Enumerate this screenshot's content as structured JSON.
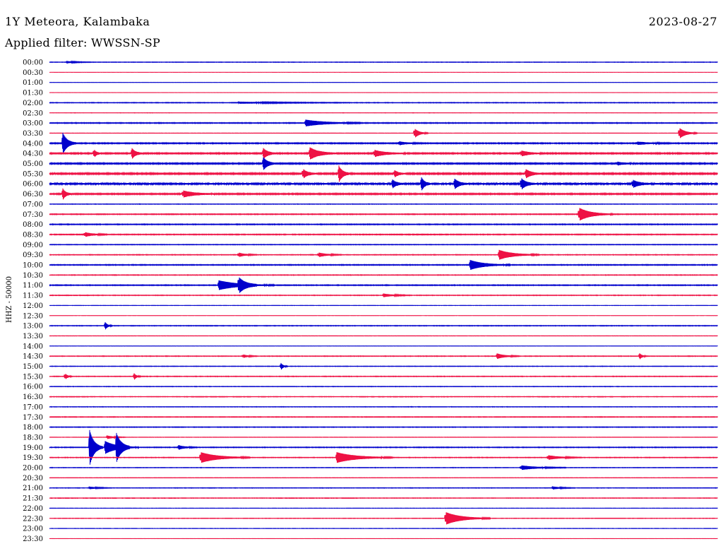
{
  "header": {
    "station": "1Y Meteora, Kalambaka",
    "date": "2023-08-27",
    "filter": "Applied filter: WWSSN-SP"
  },
  "chart_data": {
    "type": "line",
    "title": "1Y Meteora, Kalambaka",
    "ylabel": "HHZ - 50000",
    "trace_colors": [
      "#0000cc",
      "#ee1144"
    ],
    "row_labels": [
      "00:00",
      "00:30",
      "01:00",
      "01:30",
      "02:00",
      "02:30",
      "03:00",
      "03:30",
      "04:00",
      "04:30",
      "05:00",
      "05:30",
      "06:00",
      "06:30",
      "07:00",
      "07:30",
      "08:00",
      "08:30",
      "09:00",
      "09:30",
      "10:00",
      "10:30",
      "11:00",
      "11:30",
      "12:00",
      "12:30",
      "13:00",
      "13:30",
      "14:00",
      "14:30",
      "15:00",
      "15:30",
      "16:00",
      "16:30",
      "17:00",
      "17:30",
      "18:00",
      "18:30",
      "19:00",
      "19:30",
      "20:00",
      "20:30",
      "21:00",
      "21:30",
      "22:00",
      "22:30",
      "23:00",
      "23:30"
    ],
    "x_range_minutes": [
      0,
      30
    ],
    "noise_levels": [
      0.05,
      0.02,
      0.03,
      0.02,
      0.06,
      0.03,
      0.08,
      0.04,
      0.1,
      0.12,
      0.12,
      0.14,
      0.16,
      0.12,
      0.05,
      0.08,
      0.08,
      0.08,
      0.06,
      0.06,
      0.08,
      0.06,
      0.08,
      0.06,
      0.03,
      0.02,
      0.06,
      0.04,
      0.03,
      0.06,
      0.05,
      0.06,
      0.05,
      0.05,
      0.05,
      0.06,
      0.06,
      0.04,
      0.07,
      0.06,
      0.05,
      0.04,
      0.05,
      0.05,
      0.03,
      0.04,
      0.03,
      0.02
    ],
    "events": [
      {
        "row": 0,
        "minute": 0.8,
        "amp": 0.15,
        "dur": 1.2
      },
      {
        "row": 4,
        "minute": 8.5,
        "amp": 0.15,
        "dur": 5.0
      },
      {
        "row": 6,
        "minute": 11.5,
        "amp": 0.6,
        "dur": 2.5
      },
      {
        "row": 7,
        "minute": 16.4,
        "amp": 0.9,
        "dur": 0.6
      },
      {
        "row": 7,
        "minute": 28.3,
        "amp": 1.0,
        "dur": 0.8
      },
      {
        "row": 8,
        "minute": 0.6,
        "amp": 2.0,
        "dur": 0.6
      },
      {
        "row": 8,
        "minute": 15.7,
        "amp": 0.3,
        "dur": 1.0
      },
      {
        "row": 8,
        "minute": 26.4,
        "amp": 0.25,
        "dur": 1.5
      },
      {
        "row": 9,
        "minute": 2.0,
        "amp": 0.8,
        "dur": 0.3
      },
      {
        "row": 9,
        "minute": 3.7,
        "amp": 1.0,
        "dur": 0.5
      },
      {
        "row": 9,
        "minute": 9.6,
        "amp": 1.0,
        "dur": 0.6
      },
      {
        "row": 9,
        "minute": 11.7,
        "amp": 1.1,
        "dur": 1.2
      },
      {
        "row": 9,
        "minute": 14.6,
        "amp": 0.6,
        "dur": 1.4
      },
      {
        "row": 9,
        "minute": 21.2,
        "amp": 0.5,
        "dur": 1.0
      },
      {
        "row": 10,
        "minute": 9.6,
        "amp": 1.2,
        "dur": 0.6
      },
      {
        "row": 10,
        "minute": 25.5,
        "amp": 0.3,
        "dur": 0.8
      },
      {
        "row": 11,
        "minute": 11.4,
        "amp": 0.8,
        "dur": 0.6
      },
      {
        "row": 11,
        "minute": 13.0,
        "amp": 1.5,
        "dur": 0.5
      },
      {
        "row": 11,
        "minute": 15.5,
        "amp": 0.6,
        "dur": 0.5
      },
      {
        "row": 11,
        "minute": 21.4,
        "amp": 0.8,
        "dur": 0.7
      },
      {
        "row": 12,
        "minute": 15.4,
        "amp": 0.8,
        "dur": 0.5
      },
      {
        "row": 12,
        "minute": 16.7,
        "amp": 1.3,
        "dur": 0.4
      },
      {
        "row": 12,
        "minute": 18.2,
        "amp": 0.9,
        "dur": 0.6
      },
      {
        "row": 12,
        "minute": 21.2,
        "amp": 1.0,
        "dur": 0.6
      },
      {
        "row": 12,
        "minute": 26.2,
        "amp": 0.7,
        "dur": 0.8
      },
      {
        "row": 13,
        "minute": 0.6,
        "amp": 1.0,
        "dur": 0.4
      },
      {
        "row": 13,
        "minute": 6.0,
        "amp": 0.6,
        "dur": 1.5
      },
      {
        "row": 15,
        "minute": 23.8,
        "amp": 1.2,
        "dur": 1.5
      },
      {
        "row": 17,
        "minute": 1.6,
        "amp": 0.4,
        "dur": 1.0
      },
      {
        "row": 19,
        "minute": 8.5,
        "amp": 0.4,
        "dur": 0.8
      },
      {
        "row": 19,
        "minute": 12.1,
        "amp": 0.4,
        "dur": 1.0
      },
      {
        "row": 19,
        "minute": 20.2,
        "amp": 0.9,
        "dur": 1.8
      },
      {
        "row": 20,
        "minute": 18.9,
        "amp": 0.9,
        "dur": 1.8
      },
      {
        "row": 22,
        "minute": 7.6,
        "amp": 0.9,
        "dur": 2.5
      },
      {
        "row": 22,
        "minute": 8.5,
        "amp": 1.3,
        "dur": 0.8
      },
      {
        "row": 23,
        "minute": 15.0,
        "amp": 0.3,
        "dur": 1.2
      },
      {
        "row": 26,
        "minute": 2.5,
        "amp": 0.7,
        "dur": 0.3
      },
      {
        "row": 29,
        "minute": 8.7,
        "amp": 0.3,
        "dur": 0.6
      },
      {
        "row": 29,
        "minute": 20.1,
        "amp": 0.5,
        "dur": 1.0
      },
      {
        "row": 29,
        "minute": 26.5,
        "amp": 0.6,
        "dur": 0.3
      },
      {
        "row": 30,
        "minute": 10.4,
        "amp": 0.6,
        "dur": 0.3
      },
      {
        "row": 31,
        "minute": 0.7,
        "amp": 0.6,
        "dur": 0.3
      },
      {
        "row": 31,
        "minute": 3.8,
        "amp": 0.6,
        "dur": 0.3
      },
      {
        "row": 37,
        "minute": 2.6,
        "amp": 0.3,
        "dur": 0.8
      },
      {
        "row": 38,
        "minute": 1.8,
        "amp": 3.5,
        "dur": 0.6
      },
      {
        "row": 38,
        "minute": 2.5,
        "amp": 1.2,
        "dur": 1.5
      },
      {
        "row": 38,
        "minute": 3.0,
        "amp": 2.5,
        "dur": 0.6
      },
      {
        "row": 38,
        "minute": 5.8,
        "amp": 0.4,
        "dur": 0.8
      },
      {
        "row": 39,
        "minute": 6.8,
        "amp": 1.0,
        "dur": 2.2
      },
      {
        "row": 39,
        "minute": 12.9,
        "amp": 1.0,
        "dur": 2.5
      },
      {
        "row": 39,
        "minute": 22.4,
        "amp": 0.4,
        "dur": 1.5
      },
      {
        "row": 40,
        "minute": 21.2,
        "amp": 0.4,
        "dur": 2.0
      },
      {
        "row": 42,
        "minute": 1.8,
        "amp": 0.2,
        "dur": 1.0
      },
      {
        "row": 42,
        "minute": 22.6,
        "amp": 0.25,
        "dur": 1.0
      },
      {
        "row": 45,
        "minute": 17.8,
        "amp": 1.2,
        "dur": 2.0
      }
    ]
  }
}
